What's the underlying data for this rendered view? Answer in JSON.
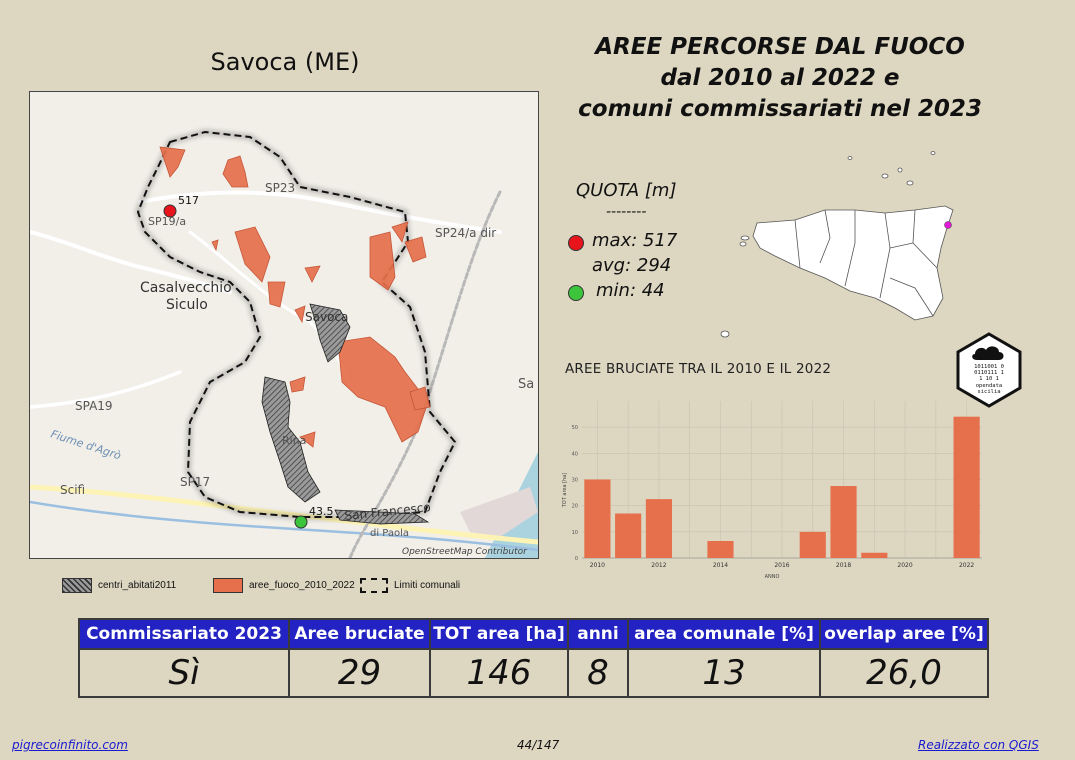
{
  "map": {
    "title": "Savoca (ME)",
    "attribution": "OpenStreetMap Contributor",
    "labels": {
      "sp23": "SP23",
      "sp19": "SP19/a",
      "sp24": "SP24/a dir",
      "casalvecchio": "Casalvecchio\nSiculo",
      "savoca": "Savoca",
      "spa19": "SPA19",
      "fiume": "Fiume d'Agrò",
      "sp17": "SP17",
      "scifi": "Scifì",
      "sanfrancesco": "San Francesco",
      "locanda": "di Paola",
      "sa": "Sa",
      "rina": "Rina",
      "max_tag": "517",
      "min_tag": "43.5"
    }
  },
  "main_title": {
    "line1": "AREE PERCORSE DAL FUOCO",
    "line2": "dal 2010 al 2022 e",
    "line3": "comuni commissariati nel 2023"
  },
  "quota": {
    "title": "QUOTA [m]",
    "separator": "--------",
    "max": "max: 517",
    "avg": "avg: 294",
    "min": "min: 44",
    "max_color": "#e8141c",
    "min_color": "#3cc43c"
  },
  "chart_data": {
    "type": "bar",
    "title": "AREE BRUCIATE TRA IL 2010 E IL 2022",
    "xlabel": "ANNO",
    "ylabel": "TOT area [ha]",
    "x": [
      2010,
      2011,
      2012,
      2014,
      2017,
      2018,
      2019,
      2022
    ],
    "values": [
      30,
      17,
      22.5,
      6.5,
      10,
      27.5,
      2,
      54
    ],
    "xlim": [
      2009.5,
      2022.5
    ],
    "ylim": [
      0,
      60
    ],
    "xticks": [
      "2010",
      "2012",
      "2014",
      "2016",
      "2018",
      "2020",
      "2022"
    ],
    "yticks": [
      "0",
      "10",
      "20",
      "30",
      "40",
      "50"
    ],
    "bar_color": "#e6704b",
    "grid": true
  },
  "legend": {
    "centri": "centri_abitati2011",
    "aree": "aree_fuoco_2010_2022",
    "limiti": "Limiti comunali",
    "fire_color": "#e6704b",
    "urban_color": "#8a8a8a"
  },
  "logo": {
    "bits": [
      "1011001 0",
      "0110111 1",
      "1   10 1"
    ],
    "name1": "opendata",
    "name2": "sicilia"
  },
  "table": {
    "headers": [
      "Commissariato 2023",
      "Aree bruciate",
      "TOT area [ha]",
      "anni",
      "area comunale [%]",
      "overlap aree [%]"
    ],
    "values": [
      "Sì",
      "29",
      "146",
      "8",
      "13",
      "26,0"
    ],
    "header_color": "#2323c3"
  },
  "footer": {
    "left": "pigrecoinfinito.com",
    "page": "44/147",
    "right": "Realizzato con QGIS"
  }
}
